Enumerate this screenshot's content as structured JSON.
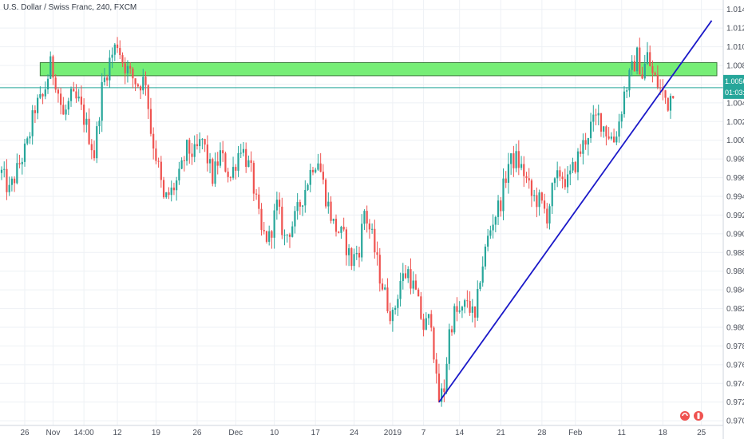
{
  "chart_data": {
    "type": "candlestick",
    "title": "U.S. Dollar / Swiss Franc, 240, FXCM",
    "ylim": [
      0.9695,
      1.015
    ],
    "y_ticks": [
      "1.01400",
      "1.01200",
      "1.01000",
      "1.00800",
      "1.00600",
      "1.00400",
      "1.00200",
      "1.00000",
      "0.99800",
      "0.99600",
      "0.99400",
      "0.99200",
      "0.99000",
      "0.98800",
      "0.98600",
      "0.98400",
      "0.98200",
      "0.98000",
      "0.97800",
      "0.97600",
      "0.97400",
      "0.97200",
      "0.97000"
    ],
    "x_ticks": [
      {
        "label": "26",
        "t": 9
      },
      {
        "label": "Nov",
        "t": 20
      },
      {
        "label": "14:00",
        "t": 32
      },
      {
        "label": "12",
        "t": 45
      },
      {
        "label": "19",
        "t": 60
      },
      {
        "label": "26",
        "t": 76
      },
      {
        "label": "Dec",
        "t": 91
      },
      {
        "label": "10",
        "t": 106
      },
      {
        "label": "17",
        "t": 122
      },
      {
        "label": "24",
        "t": 137
      },
      {
        "label": "2019",
        "t": 152
      },
      {
        "label": "7",
        "t": 164
      },
      {
        "label": "14",
        "t": 178
      },
      {
        "label": "21",
        "t": 194
      },
      {
        "label": "28",
        "t": 210
      },
      {
        "label": "Feb",
        "t": 223
      },
      {
        "label": "11",
        "t": 241
      },
      {
        "label": "18",
        "t": 257
      },
      {
        "label": "25",
        "t": 272
      }
    ],
    "price_label": {
      "value": "1.00562",
      "time": "01:03:11",
      "color": "#26a69a"
    },
    "colors": {
      "up": "#26a69a",
      "down": "#ef5350",
      "resistance": "#76ee76",
      "trendline": "#1a18c8",
      "price_line": "#26a69a"
    },
    "resistance_zone": {
      "t_start": 15,
      "t_end": 278,
      "y_low": 1.0069,
      "y_high": 1.0083
    },
    "trendline": {
      "t1": 170,
      "y1": 0.972,
      "t2": 276,
      "y2": 1.0128
    },
    "price_line": 1.00562,
    "anchors": [
      [
        0,
        0.9965
      ],
      [
        3,
        0.9945
      ],
      [
        7,
        0.9975
      ],
      [
        10,
        0.9995
      ],
      [
        13,
        1.0035
      ],
      [
        16,
        1.0045
      ],
      [
        19,
        1.008
      ],
      [
        21,
        1.0065
      ],
      [
        24,
        1.0025
      ],
      [
        27,
        1.0045
      ],
      [
        30,
        1.004
      ],
      [
        33,
        1.0015
      ],
      [
        36,
        0.9985
      ],
      [
        39,
        1.0055
      ],
      [
        42,
        1.0085
      ],
      [
        45,
        1.0105
      ],
      [
        47,
        1.0085
      ],
      [
        50,
        1.007
      ],
      [
        53,
        1.006
      ],
      [
        56,
        1.0065
      ],
      [
        58,
        1.001
      ],
      [
        61,
        0.997
      ],
      [
        63,
        0.9935
      ],
      [
        66,
        0.9945
      ],
      [
        69,
        0.996
      ],
      [
        72,
        0.999
      ],
      [
        75,
        0.9985
      ],
      [
        78,
        1.0
      ],
      [
        82,
        0.996
      ],
      [
        85,
        0.9985
      ],
      [
        89,
        0.996
      ],
      [
        93,
        0.9995
      ],
      [
        97,
        0.9965
      ],
      [
        101,
        0.99
      ],
      [
        104,
        0.9895
      ],
      [
        107,
        0.993
      ],
      [
        110,
        0.9895
      ],
      [
        114,
        0.9915
      ],
      [
        117,
        0.994
      ],
      [
        121,
        0.9975
      ],
      [
        123,
        0.998
      ],
      [
        126,
        0.994
      ],
      [
        129,
        0.991
      ],
      [
        133,
        0.9895
      ],
      [
        136,
        0.987
      ],
      [
        139,
        0.9885
      ],
      [
        141,
        0.9925
      ],
      [
        144,
        0.9895
      ],
      [
        147,
        0.9855
      ],
      [
        150,
        0.9825
      ],
      [
        152,
        0.981
      ],
      [
        155,
        0.985
      ],
      [
        158,
        0.986
      ],
      [
        161,
        0.9835
      ],
      [
        164,
        0.98
      ],
      [
        167,
        0.981
      ],
      [
        169,
        0.974
      ],
      [
        170,
        0.9722
      ],
      [
        172,
        0.9735
      ],
      [
        174,
        0.9795
      ],
      [
        176,
        0.9815
      ],
      [
        179,
        0.9815
      ],
      [
        181,
        0.983
      ],
      [
        184,
        0.9805
      ],
      [
        186,
        0.9855
      ],
      [
        189,
        0.9895
      ],
      [
        191,
        0.9915
      ],
      [
        194,
        0.9935
      ],
      [
        197,
        0.9975
      ],
      [
        200,
        0.998
      ],
      [
        203,
        0.9965
      ],
      [
        206,
        0.994
      ],
      [
        209,
        0.9935
      ],
      [
        212,
        0.992
      ],
      [
        214,
        0.9945
      ],
      [
        217,
        0.9965
      ],
      [
        220,
        0.9955
      ],
      [
        223,
        0.9975
      ],
      [
        226,
        0.9995
      ],
      [
        229,
        1.0015
      ],
      [
        232,
        1.0025
      ],
      [
        235,
        1.001
      ],
      [
        238,
        1.0
      ],
      [
        240,
        1.002
      ],
      [
        242,
        1.005
      ],
      [
        245,
        1.0075
      ],
      [
        247,
        1.009
      ],
      [
        249,
        1.007
      ],
      [
        251,
        1.009
      ],
      [
        253,
        1.007
      ],
      [
        255,
        1.006
      ],
      [
        257,
        1.005
      ],
      [
        259,
        1.004
      ],
      [
        261,
        1.0056
      ]
    ],
    "t_min": 0,
    "t_max": 278
  }
}
